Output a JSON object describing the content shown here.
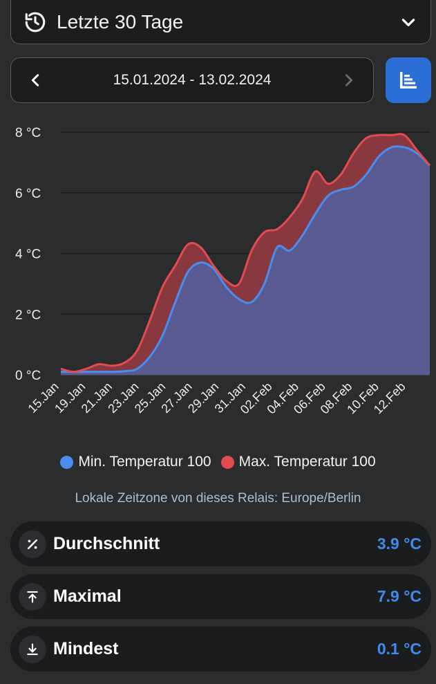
{
  "range_select": {
    "label": "Letzte 30 Tage",
    "icon": "history-icon"
  },
  "date_nav": {
    "range": "15.01.2024 - 13.02.2024"
  },
  "chart_data": {
    "type": "area",
    "yticks": [
      "0 °C",
      "2 °C",
      "4 °C",
      "6 °C",
      "8 °C"
    ],
    "ylim": [
      0,
      8
    ],
    "x_labels": [
      "15.Jan",
      "19.Jan",
      "21.Jan",
      "23.Jan",
      "25.Jan",
      "27.Jan",
      "29.Jan",
      "31.Jan",
      "02.Feb",
      "04.Feb",
      "06.Feb",
      "08.Feb",
      "10.Feb",
      "12.Feb"
    ],
    "x": [
      "15.01",
      "16.01",
      "17.01",
      "18.01",
      "19.01",
      "20.01",
      "21.01",
      "22.01",
      "23.01",
      "24.01",
      "25.01",
      "26.01",
      "27.01",
      "28.01",
      "29.01",
      "30.01",
      "31.01",
      "01.02",
      "02.02",
      "03.02",
      "04.02",
      "05.02",
      "06.02",
      "07.02",
      "08.02",
      "09.02",
      "10.02",
      "11.02",
      "12.02",
      "13.02"
    ],
    "series": [
      {
        "name": "Min. Temperatur 100",
        "color": "#4a8df0",
        "values": [
          0.1,
          0.1,
          0.1,
          0.1,
          0.1,
          0.12,
          0.2,
          0.6,
          1.3,
          2.4,
          3.4,
          3.7,
          3.5,
          2.9,
          2.5,
          2.4,
          3.0,
          4.2,
          4.1,
          4.6,
          5.3,
          5.9,
          6.1,
          6.2,
          6.6,
          7.2,
          7.5,
          7.5,
          7.3,
          6.9
        ]
      },
      {
        "name": "Max. Temperatur 100",
        "color": "#e24c50",
        "values": [
          0.2,
          0.1,
          0.2,
          0.35,
          0.3,
          0.4,
          0.8,
          1.8,
          2.9,
          3.6,
          4.3,
          4.2,
          3.6,
          3.1,
          3.0,
          4.1,
          4.7,
          4.8,
          5.2,
          5.8,
          6.7,
          6.3,
          6.6,
          7.3,
          7.8,
          7.9,
          7.9,
          7.9,
          7.4,
          6.9
        ]
      }
    ],
    "grid": true,
    "legend": "bottom"
  },
  "legend": {
    "min_label": "Min. Temperatur 100",
    "max_label": "Max. Temperatur 100",
    "min_color": "#4a8df0",
    "max_color": "#e24c50"
  },
  "timezone_note": "Lokale Zeitzone von dieses Relais: Europe/Berlin",
  "stats": [
    {
      "label": "Durchschnitt",
      "value": "3.9 °C",
      "icon": "percent-icon"
    },
    {
      "label": "Maximal",
      "value": "7.9 °C",
      "icon": "arrow-up-to-line-icon"
    },
    {
      "label": "Mindest",
      "value": "0.1 °C",
      "icon": "arrow-down-to-line-icon"
    }
  ]
}
